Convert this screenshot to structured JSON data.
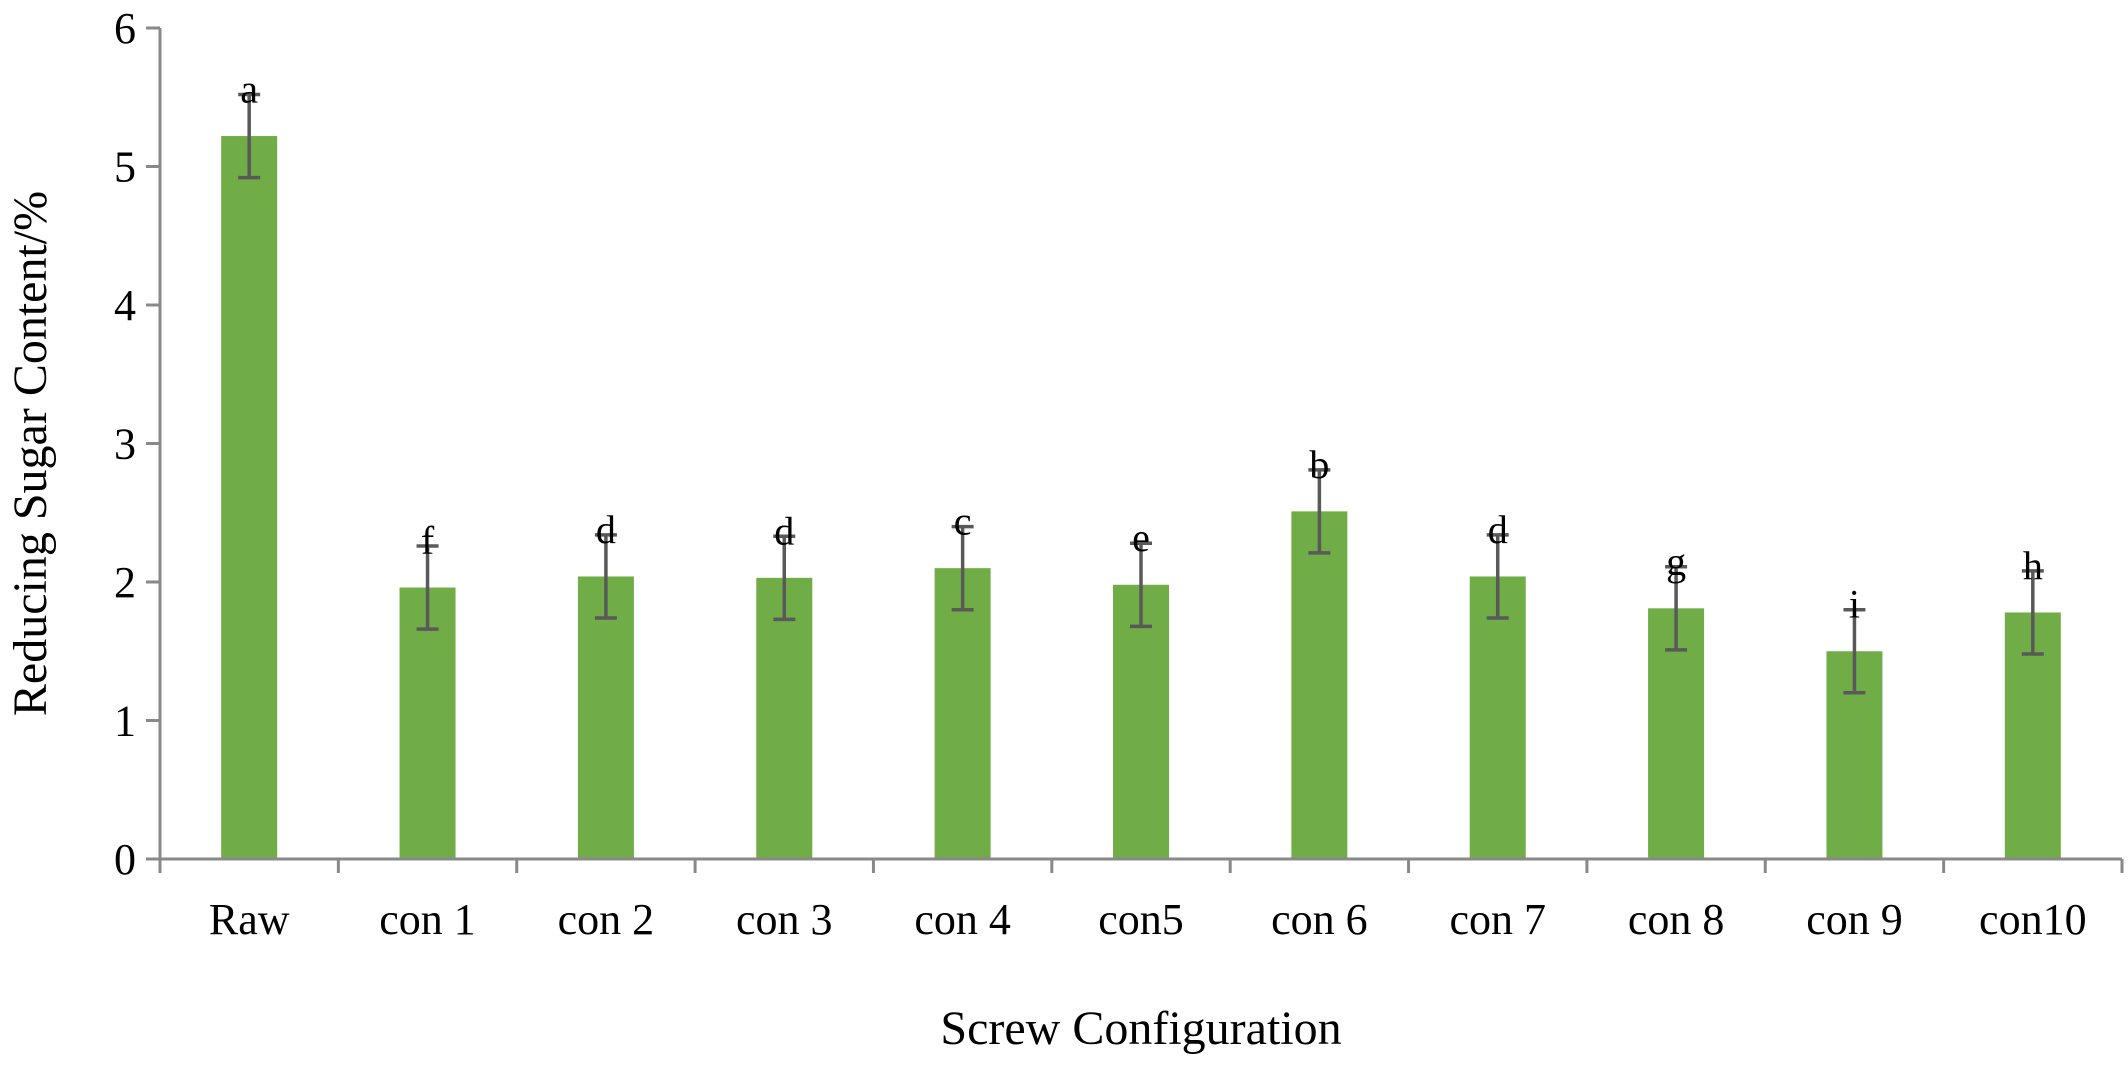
{
  "chart_data": {
    "type": "bar",
    "title": "",
    "xlabel": "Screw Configuration",
    "ylabel": "Reducing Sugar Content/%",
    "ylim": [
      0,
      6
    ],
    "yticks": [
      "0",
      "1",
      "2",
      "3",
      "4",
      "5",
      "6"
    ],
    "grid": false,
    "legend": "none",
    "bar_color": "#70ad47",
    "error_bar_color": "#595959",
    "axis_color": "#898989",
    "categories": [
      "Raw",
      "con 1",
      "con 2",
      "con 3",
      "con 4",
      "con5",
      "con 6",
      "con 7",
      "con 8",
      "con 9",
      "con10"
    ],
    "values": [
      5.22,
      1.96,
      2.04,
      2.03,
      2.1,
      1.98,
      2.51,
      2.04,
      1.81,
      1.5,
      1.78
    ],
    "errors": [
      0.3,
      0.3,
      0.3,
      0.3,
      0.3,
      0.3,
      0.3,
      0.3,
      0.3,
      0.3,
      0.3
    ],
    "significance_labels": [
      "a",
      "f",
      "d",
      "d",
      "c",
      "e",
      "b",
      "d",
      "g",
      "i",
      "h"
    ]
  }
}
